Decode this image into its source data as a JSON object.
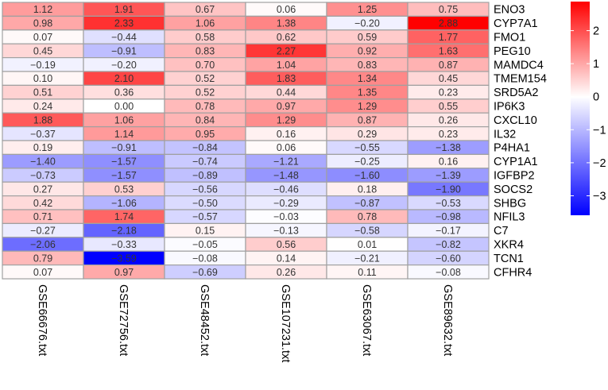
{
  "chart_data": {
    "type": "heatmap",
    "rows": [
      "ENO3",
      "CYP7A1",
      "FMO1",
      "PEG10",
      "MAMDC4",
      "TMEM154",
      "SRD5A2",
      "IP6K3",
      "CXCL10",
      "IL32",
      "P4HA1",
      "CYP1A1",
      "IGFBP2",
      "SOCS2",
      "SHBG",
      "NFIL3",
      "C7",
      "XKR4",
      "TCN1",
      "CFHR4"
    ],
    "columns": [
      "GSE66676.txt",
      "GSE72756.txt",
      "GSE48452.txt",
      "GSE107231.txt",
      "GSE63067.txt",
      "GSE89632.txt"
    ],
    "values": [
      [
        1.12,
        1.91,
        0.67,
        0.06,
        1.25,
        0.75
      ],
      [
        0.98,
        2.33,
        1.06,
        1.38,
        -0.2,
        2.88
      ],
      [
        0.07,
        -0.44,
        0.58,
        0.62,
        0.59,
        1.77
      ],
      [
        0.45,
        -0.91,
        0.83,
        2.27,
        0.92,
        1.63
      ],
      [
        -0.19,
        -0.2,
        0.7,
        1.04,
        0.83,
        0.87
      ],
      [
        0.1,
        2.1,
        0.52,
        1.83,
        1.34,
        0.45
      ],
      [
        0.51,
        0.36,
        0.52,
        0.44,
        1.35,
        0.23
      ],
      [
        0.24,
        0.0,
        0.78,
        0.97,
        1.29,
        0.55
      ],
      [
        1.88,
        1.06,
        0.84,
        1.29,
        0.87,
        0.26
      ],
      [
        -0.37,
        1.14,
        0.95,
        0.16,
        0.29,
        0.23
      ],
      [
        0.19,
        -0.91,
        -0.84,
        0.06,
        -0.55,
        -1.38
      ],
      [
        -1.4,
        -1.57,
        -0.74,
        -1.21,
        -0.25,
        0.16
      ],
      [
        -0.73,
        -1.57,
        -0.89,
        -1.48,
        -1.6,
        -1.39
      ],
      [
        0.27,
        0.53,
        -0.56,
        -0.46,
        0.18,
        -1.9
      ],
      [
        0.42,
        -1.06,
        -0.5,
        -0.29,
        -0.87,
        -0.53
      ],
      [
        0.71,
        1.74,
        -0.57,
        -0.03,
        0.78,
        -0.98
      ],
      [
        -0.27,
        -2.18,
        0.15,
        -0.13,
        -0.58,
        -0.17
      ],
      [
        -2.06,
        -0.33,
        -0.05,
        0.56,
        0.01,
        -0.82
      ],
      [
        0.79,
        -3.59,
        -0.08,
        0.14,
        -0.21,
        -0.6
      ],
      [
        0.07,
        0.97,
        -0.69,
        0.26,
        0.11,
        -0.08
      ]
    ],
    "color_scale": {
      "low": "#0000ff",
      "mid": "#ffffff",
      "high": "#ff0000",
      "min": -3.59,
      "max": 2.88
    },
    "legend": {
      "ticks": [
        2,
        1,
        0,
        -1,
        -2,
        -3
      ],
      "placement": "right"
    },
    "cell_border_color": "#a0a0a0"
  }
}
